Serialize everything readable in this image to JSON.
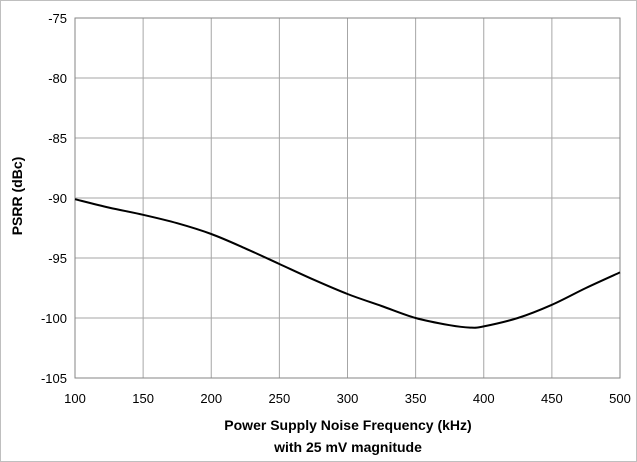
{
  "chart_data": {
    "type": "line",
    "title": "",
    "xlabel_line1": "Power Supply Noise Frequency (kHz)",
    "xlabel_line2": "with 25 mV magnitude",
    "ylabel": "PSRR (dBc)",
    "xlim": [
      100,
      500
    ],
    "ylim": [
      -105,
      -75
    ],
    "x_ticks": [
      "100",
      "150",
      "200",
      "250",
      "300",
      "350",
      "400",
      "450",
      "500"
    ],
    "y_ticks": [
      "-75",
      "-80",
      "-85",
      "-90",
      "-95",
      "-100",
      "-105"
    ],
    "grid": true,
    "series": [
      {
        "color": "#000000",
        "x": [
          100,
          125,
          150,
          175,
          200,
          225,
          250,
          275,
          300,
          325,
          350,
          375,
          390,
          400,
          425,
          450,
          475,
          500
        ],
        "y": [
          -90.1,
          -90.8,
          -91.4,
          -92.1,
          -93.0,
          -94.2,
          -95.5,
          -96.8,
          -98.0,
          -99.0,
          -100.0,
          -100.6,
          -100.8,
          -100.7,
          -100.0,
          -98.9,
          -97.5,
          -96.2
        ]
      }
    ]
  }
}
